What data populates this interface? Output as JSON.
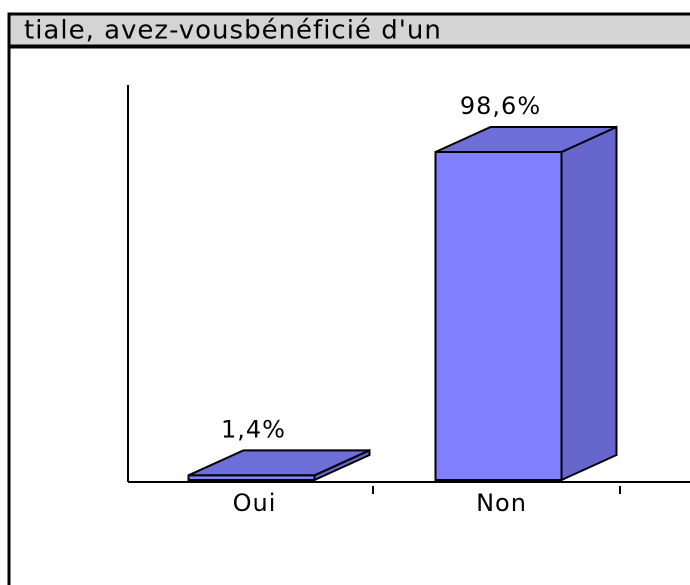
{
  "chart_data": {
    "type": "bar",
    "title": "tiale, avez-vousbénéficié d'un",
    "categories": [
      "Oui",
      "Non"
    ],
    "values": [
      1.4,
      98.6
    ],
    "value_labels": [
      "1,4%",
      "98,6%"
    ],
    "color": "#8080ff"
  }
}
